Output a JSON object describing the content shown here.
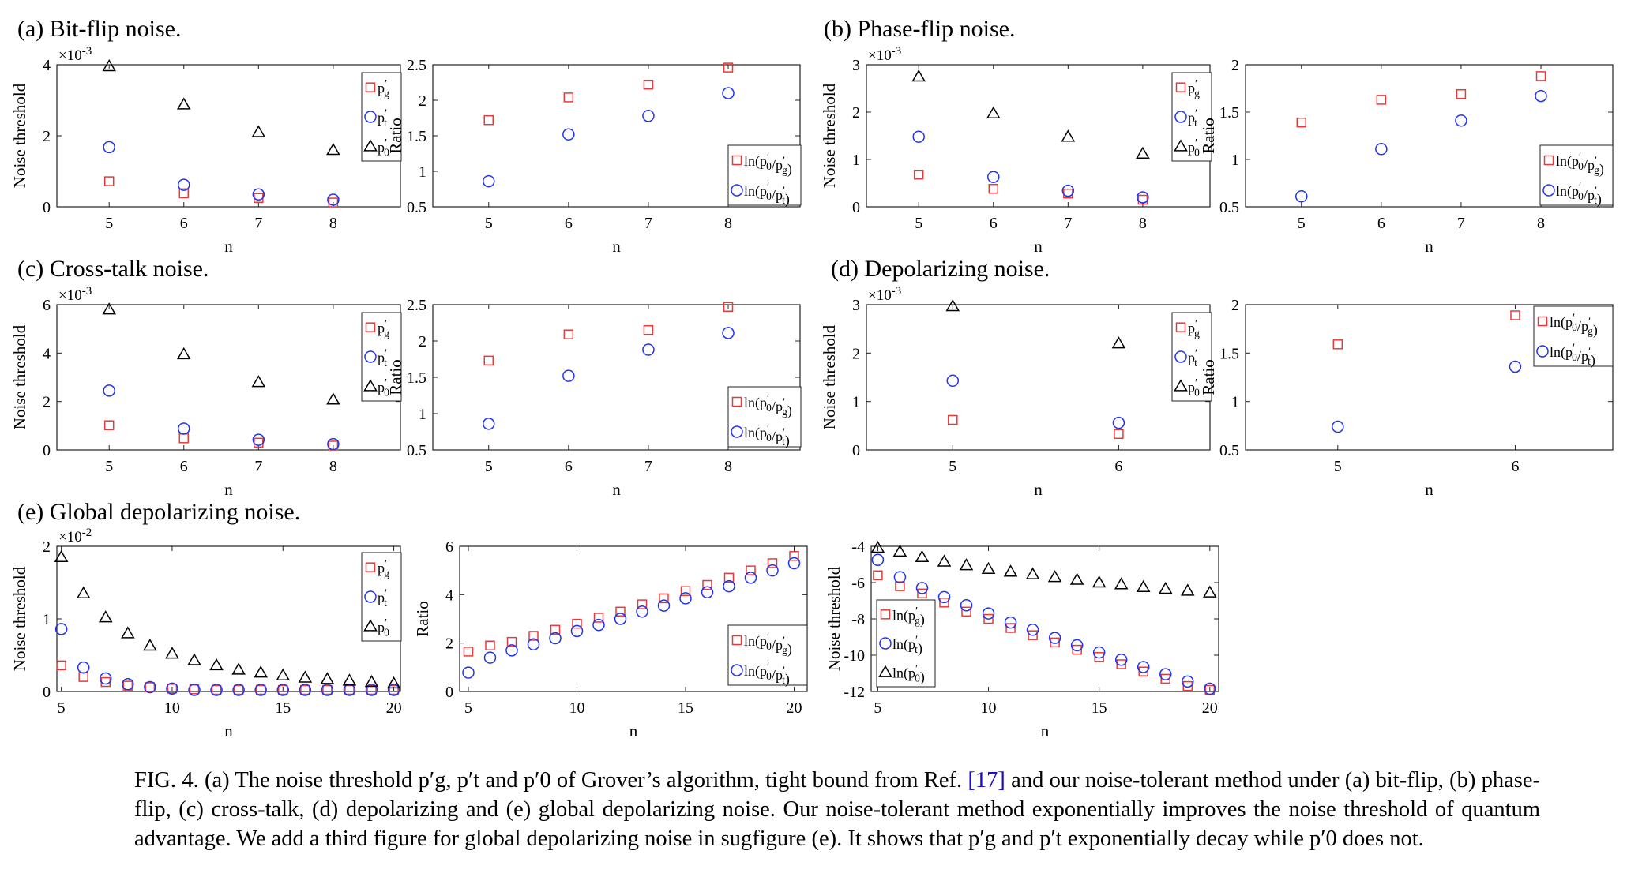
{
  "sections": [
    {
      "id": "a",
      "label": "(a) Bit-flip noise."
    },
    {
      "id": "b",
      "label": "(b) Phase-flip noise."
    },
    {
      "id": "c",
      "label": "(c) Cross-talk noise."
    },
    {
      "id": "d",
      "label": "(d) Depolarizing noise."
    },
    {
      "id": "e",
      "label": "(e) Global depolarizing noise."
    }
  ],
  "caption": {
    "text_before_ref": "FIG. 4. (a) The noise threshold p′g, p′t and p′0 of Grover’s algorithm, tight bound from Ref.",
    "ref": "[17]",
    "text_after_ref": "and our noise-tolerant method under (a) bit-flip, (b) phase-flip, (c) cross-talk, (d) depolarizing and (e) global depolarizing noise. Our noise-tolerant method exponentially improves the noise threshold of quantum advantage. We add a third figure for global depolarizing noise in sugfigure (e). It shows that p′g and p′t exponentially decay while p′0 does not."
  },
  "colors": {
    "pg": "#e83a3a",
    "pt": "#2233ee",
    "p0": "#000000"
  },
  "chart_data": [
    {
      "id": "a-threshold",
      "type": "scatter",
      "xlabel": "n",
      "ylabel": "Noise threshold",
      "exponent": "×10-3",
      "x_ticks": [
        5,
        6,
        7,
        8
      ],
      "xlim": [
        4.3,
        8.9
      ],
      "y_ticks": [
        0,
        2,
        4
      ],
      "ylim": [
        0,
        4
      ],
      "legend": "top-right",
      "series": [
        {
          "name": "p′g",
          "marker": "square",
          "color": "#e83a3a",
          "x": [
            5,
            6,
            7,
            8
          ],
          "y": [
            0.72,
            0.38,
            0.25,
            0.12
          ]
        },
        {
          "name": "p′t",
          "marker": "circle",
          "color": "#2233ee",
          "x": [
            5,
            6,
            7,
            8
          ],
          "y": [
            1.68,
            0.62,
            0.35,
            0.2
          ]
        },
        {
          "name": "p′0",
          "marker": "triangle",
          "color": "#000000",
          "x": [
            5,
            6,
            7,
            8
          ],
          "y": [
            3.98,
            2.88,
            2.1,
            1.6
          ]
        }
      ]
    },
    {
      "id": "a-ratio",
      "type": "scatter",
      "xlabel": "n",
      "ylabel": "Ratio",
      "x_ticks": [
        5,
        6,
        7,
        8
      ],
      "xlim": [
        4.3,
        8.9
      ],
      "y_ticks": [
        0.5,
        1,
        1.5,
        2,
        2.5
      ],
      "ylim": [
        0.5,
        2.5
      ],
      "legend": "bottom-right",
      "series": [
        {
          "name": "ln(p′0/p′g)",
          "marker": "square",
          "color": "#e83a3a",
          "x": [
            5,
            6,
            7,
            8
          ],
          "y": [
            1.72,
            2.04,
            2.22,
            2.46
          ]
        },
        {
          "name": "ln(p′0/p′t)",
          "marker": "circle",
          "color": "#2233ee",
          "x": [
            5,
            6,
            7,
            8
          ],
          "y": [
            0.86,
            1.52,
            1.78,
            2.1
          ]
        }
      ]
    },
    {
      "id": "b-threshold",
      "type": "scatter",
      "xlabel": "n",
      "ylabel": "Noise threshold",
      "exponent": "×10-3",
      "x_ticks": [
        5,
        6,
        7,
        8
      ],
      "xlim": [
        4.3,
        8.9
      ],
      "y_ticks": [
        0,
        1,
        2,
        3
      ],
      "ylim": [
        0,
        3
      ],
      "legend": "top-right",
      "series": [
        {
          "name": "p′g",
          "marker": "square",
          "color": "#e83a3a",
          "x": [
            5,
            6,
            7,
            8
          ],
          "y": [
            0.68,
            0.38,
            0.28,
            0.15
          ]
        },
        {
          "name": "p′t",
          "marker": "circle",
          "color": "#2233ee",
          "x": [
            5,
            6,
            7,
            8
          ],
          "y": [
            1.48,
            0.63,
            0.34,
            0.2
          ]
        },
        {
          "name": "p′0",
          "marker": "triangle",
          "color": "#000000",
          "x": [
            5,
            6,
            7,
            8
          ],
          "y": [
            2.75,
            1.97,
            1.48,
            1.12
          ]
        }
      ]
    },
    {
      "id": "b-ratio",
      "type": "scatter",
      "xlabel": "n",
      "ylabel": "Ratio",
      "x_ticks": [
        5,
        6,
        7,
        8
      ],
      "xlim": [
        4.3,
        8.9
      ],
      "y_ticks": [
        0.5,
        1,
        1.5,
        2
      ],
      "ylim": [
        0.5,
        2
      ],
      "legend": "bottom-right",
      "series": [
        {
          "name": "ln(p′0/p′g)",
          "marker": "square",
          "color": "#e83a3a",
          "x": [
            5,
            6,
            7,
            8
          ],
          "y": [
            1.39,
            1.63,
            1.69,
            1.88
          ]
        },
        {
          "name": "ln(p′0/p′t)",
          "marker": "circle",
          "color": "#2233ee",
          "x": [
            5,
            6,
            7,
            8
          ],
          "y": [
            0.61,
            1.11,
            1.41,
            1.67
          ]
        }
      ]
    },
    {
      "id": "c-threshold",
      "type": "scatter",
      "xlabel": "n",
      "ylabel": "Noise threshold",
      "exponent": "×10-3",
      "x_ticks": [
        5,
        6,
        7,
        8
      ],
      "xlim": [
        4.3,
        8.9
      ],
      "y_ticks": [
        0,
        2,
        4,
        6
      ],
      "ylim": [
        0,
        6
      ],
      "legend": "top-right",
      "series": [
        {
          "name": "p′g",
          "marker": "square",
          "color": "#e83a3a",
          "x": [
            5,
            6,
            7,
            8
          ],
          "y": [
            1.02,
            0.48,
            0.3,
            0.18
          ]
        },
        {
          "name": "p′t",
          "marker": "circle",
          "color": "#2233ee",
          "x": [
            5,
            6,
            7,
            8
          ],
          "y": [
            2.45,
            0.88,
            0.42,
            0.24
          ]
        },
        {
          "name": "p′0",
          "marker": "triangle",
          "color": "#000000",
          "x": [
            5,
            6,
            7,
            8
          ],
          "y": [
            5.8,
            3.95,
            2.8,
            2.08
          ]
        }
      ]
    },
    {
      "id": "c-ratio",
      "type": "scatter",
      "xlabel": "n",
      "ylabel": "Ratio",
      "x_ticks": [
        5,
        6,
        7,
        8
      ],
      "xlim": [
        4.3,
        8.9
      ],
      "y_ticks": [
        0.5,
        1,
        1.5,
        2,
        2.5
      ],
      "ylim": [
        0.5,
        2.5
      ],
      "legend": "bottom-right",
      "series": [
        {
          "name": "ln(p′0/p′g)",
          "marker": "square",
          "color": "#e83a3a",
          "x": [
            5,
            6,
            7,
            8
          ],
          "y": [
            1.73,
            2.09,
            2.15,
            2.47
          ]
        },
        {
          "name": "ln(p′0/p′t)",
          "marker": "circle",
          "color": "#2233ee",
          "x": [
            5,
            6,
            7,
            8
          ],
          "y": [
            0.86,
            1.52,
            1.88,
            2.11
          ]
        }
      ]
    },
    {
      "id": "d-threshold",
      "type": "scatter",
      "xlabel": "n",
      "ylabel": "Noise threshold",
      "exponent": "×10-3",
      "x_ticks": [
        5,
        6
      ],
      "xlim": [
        4.48,
        6.55
      ],
      "y_ticks": [
        0,
        1,
        2,
        3
      ],
      "ylim": [
        0,
        3
      ],
      "legend": "top-right",
      "series": [
        {
          "name": "p′g",
          "marker": "square",
          "color": "#e83a3a",
          "x": [
            5,
            6
          ],
          "y": [
            0.62,
            0.33
          ]
        },
        {
          "name": "p′t",
          "marker": "circle",
          "color": "#2233ee",
          "x": [
            5,
            6
          ],
          "y": [
            1.43,
            0.56
          ]
        },
        {
          "name": "p′0",
          "marker": "triangle",
          "color": "#000000",
          "x": [
            5,
            6
          ],
          "y": [
            3.0,
            2.2
          ]
        }
      ]
    },
    {
      "id": "d-ratio",
      "type": "scatter",
      "xlabel": "n",
      "ylabel": "Ratio",
      "x_ticks": [
        5,
        6
      ],
      "xlim": [
        4.48,
        6.55
      ],
      "y_ticks": [
        0.5,
        1,
        1.5,
        2
      ],
      "ylim": [
        0.5,
        2
      ],
      "legend": "top-right",
      "series": [
        {
          "name": "ln(p′0/p′g)",
          "marker": "square",
          "color": "#e83a3a",
          "x": [
            5,
            6
          ],
          "y": [
            1.59,
            1.89
          ]
        },
        {
          "name": "ln(p′0/p′t)",
          "marker": "circle",
          "color": "#2233ee",
          "x": [
            5,
            6
          ],
          "y": [
            0.74,
            1.36
          ]
        }
      ]
    },
    {
      "id": "e-threshold",
      "type": "scatter",
      "xlabel": "n",
      "ylabel": "Noise threshold",
      "exponent": "×10-2",
      "x_ticks": [
        5,
        10,
        15,
        20
      ],
      "xlim": [
        4.8,
        20.3
      ],
      "y_ticks": [
        0,
        1,
        2
      ],
      "ylim": [
        0,
        2
      ],
      "legend": "top-right",
      "series": [
        {
          "name": "p′g",
          "marker": "square",
          "color": "#e83a3a",
          "x": [
            5,
            6,
            7,
            8,
            9,
            10,
            11,
            12,
            13,
            14,
            15,
            16,
            17,
            18,
            19,
            20
          ],
          "y": [
            0.36,
            0.2,
            0.13,
            0.08,
            0.06,
            0.04,
            0.03,
            0.02,
            0.02,
            0.01,
            0.01,
            0.01,
            0.01,
            0.01,
            0.01,
            0.01
          ]
        },
        {
          "name": "p′t",
          "marker": "circle",
          "color": "#2233ee",
          "x": [
            5,
            6,
            7,
            8,
            9,
            10,
            11,
            12,
            13,
            14,
            15,
            16,
            17,
            18,
            19,
            20
          ],
          "y": [
            0.86,
            0.33,
            0.18,
            0.1,
            0.06,
            0.04,
            0.02,
            0.015,
            0.01,
            0.01,
            0.01,
            0.01,
            0.01,
            0.01,
            0.01,
            0.01
          ]
        },
        {
          "name": "p′0",
          "marker": "triangle",
          "color": "#000000",
          "x": [
            5,
            6,
            7,
            8,
            9,
            10,
            11,
            12,
            13,
            14,
            15,
            16,
            17,
            18,
            19,
            20
          ],
          "y": [
            1.85,
            1.35,
            1.02,
            0.8,
            0.63,
            0.52,
            0.43,
            0.36,
            0.3,
            0.26,
            0.22,
            0.19,
            0.17,
            0.15,
            0.13,
            0.11
          ]
        }
      ]
    },
    {
      "id": "e-ratio",
      "type": "scatter",
      "xlabel": "n",
      "ylabel": "Ratio",
      "x_ticks": [
        5,
        10,
        15,
        20
      ],
      "xlim": [
        4.6,
        20.6
      ],
      "y_ticks": [
        0,
        2,
        4,
        6
      ],
      "ylim": [
        0,
        6
      ],
      "legend": "bottom-right",
      "series": [
        {
          "name": "ln(p′0/p′g)",
          "marker": "square",
          "color": "#e83a3a",
          "x": [
            5,
            6,
            7,
            8,
            9,
            10,
            11,
            12,
            13,
            14,
            15,
            16,
            17,
            18,
            19,
            20
          ],
          "y": [
            1.65,
            1.9,
            2.05,
            2.3,
            2.55,
            2.8,
            3.05,
            3.3,
            3.6,
            3.85,
            4.15,
            4.4,
            4.7,
            5.0,
            5.3,
            5.6
          ]
        },
        {
          "name": "ln(p′0/p′t)",
          "marker": "circle",
          "color": "#2233ee",
          "x": [
            5,
            6,
            7,
            8,
            9,
            10,
            11,
            12,
            13,
            14,
            15,
            16,
            17,
            18,
            19,
            20
          ],
          "y": [
            0.78,
            1.4,
            1.7,
            1.95,
            2.2,
            2.5,
            2.75,
            3.0,
            3.3,
            3.55,
            3.85,
            4.1,
            4.35,
            4.7,
            5.0,
            5.3
          ]
        }
      ]
    },
    {
      "id": "e-log",
      "type": "scatter",
      "xlabel": "n",
      "ylabel": "Noise threshold",
      "x_ticks": [
        5,
        10,
        15,
        20
      ],
      "xlim": [
        4.7,
        20.4
      ],
      "y_ticks": [
        -12,
        -10,
        -8,
        -6,
        -4
      ],
      "ylim": [
        -12,
        -4
      ],
      "legend": "middle-left",
      "series": [
        {
          "name": "ln(p′g)",
          "marker": "square",
          "color": "#e83a3a",
          "x": [
            5,
            6,
            7,
            8,
            9,
            10,
            11,
            12,
            13,
            14,
            15,
            16,
            17,
            18,
            19,
            20
          ],
          "y": [
            -5.6,
            -6.2,
            -6.6,
            -7.1,
            -7.6,
            -8.0,
            -8.5,
            -8.9,
            -9.3,
            -9.7,
            -10.1,
            -10.5,
            -10.9,
            -11.3,
            -11.7,
            -12.0
          ]
        },
        {
          "name": "ln(p′t)",
          "marker": "circle",
          "color": "#2233ee",
          "x": [
            5,
            6,
            7,
            8,
            9,
            10,
            11,
            12,
            13,
            14,
            15,
            16,
            17,
            18,
            19,
            20
          ],
          "y": [
            -4.75,
            -5.7,
            -6.3,
            -6.8,
            -7.25,
            -7.7,
            -8.2,
            -8.6,
            -9.05,
            -9.45,
            -9.85,
            -10.25,
            -10.65,
            -11.05,
            -11.45,
            -11.85
          ]
        },
        {
          "name": "ln(p′0)",
          "marker": "triangle",
          "color": "#000000",
          "x": [
            5,
            6,
            7,
            8,
            9,
            10,
            11,
            12,
            13,
            14,
            15,
            16,
            17,
            18,
            19,
            20
          ],
          "y": [
            -4.0,
            -4.3,
            -4.6,
            -4.85,
            -5.05,
            -5.25,
            -5.4,
            -5.55,
            -5.7,
            -5.85,
            -6.0,
            -6.1,
            -6.25,
            -6.35,
            -6.45,
            -6.55
          ]
        }
      ]
    }
  ]
}
